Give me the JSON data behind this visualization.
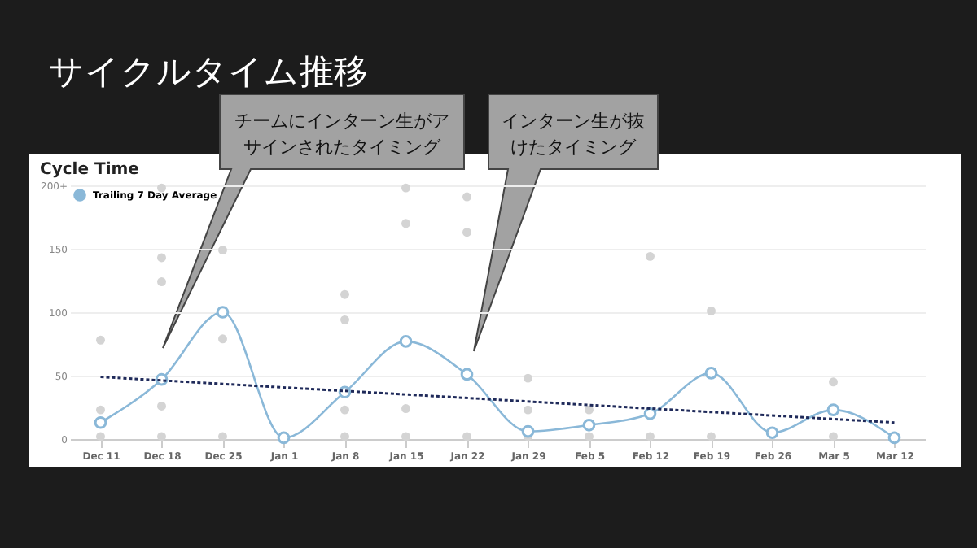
{
  "chart_data": {
    "type": "line",
    "title": "サイクルタイム推移",
    "subtitle": "Cycle Time",
    "categories": [
      "Dec 11",
      "Dec 18",
      "Dec 25",
      "Jan 1",
      "Jan 8",
      "Jan 15",
      "Jan 22",
      "Jan 29",
      "Feb 5",
      "Feb 12",
      "Feb 19",
      "Feb 26",
      "Mar 5",
      "Mar 12"
    ],
    "series": [
      {
        "name": "Trailing 7 Day Average",
        "color": "#8ab8d8",
        "marker": "circle",
        "values": [
          13,
          47,
          100,
          1,
          37,
          77,
          51,
          6,
          11,
          20,
          52,
          5,
          23,
          1
        ]
      },
      {
        "type": "scatter",
        "color": "#d4d4d4",
        "x": [
          "Dec 11",
          "Dec 11",
          "Dec 11",
          "Dec 18",
          "Dec 18",
          "Dec 18",
          "Dec 18",
          "Dec 18",
          "Dec 25",
          "Dec 25",
          "Dec 25",
          "Jan 8",
          "Jan 8",
          "Jan 8",
          "Jan 8",
          "Jan 15",
          "Jan 15",
          "Jan 15",
          "Jan 15",
          "Jan 22",
          "Jan 22",
          "Jan 22",
          "Jan 29",
          "Jan 29",
          "Jan 29",
          "Feb 5",
          "Feb 5",
          "Feb 12",
          "Feb 12",
          "Feb 19",
          "Feb 19",
          "Mar 5",
          "Mar 5"
        ],
        "values": [
          78,
          23,
          2,
          198,
          143,
          124,
          26,
          2,
          149,
          79,
          2,
          114,
          94,
          23,
          2,
          198,
          170,
          24,
          2,
          191,
          163,
          2,
          48,
          23,
          2,
          23,
          2,
          144,
          2,
          101,
          2,
          45,
          2
        ]
      },
      {
        "type": "line",
        "color": "#1f2a5a",
        "marker": "none",
        "line_style": "dotted",
        "x": [
          "Dec 11",
          "Mar 12"
        ],
        "values": [
          49,
          13
        ]
      }
    ],
    "ylim": [
      0,
      200
    ],
    "yticks": [
      0,
      50,
      100,
      150,
      {
        "value": 200,
        "label": "200+"
      }
    ],
    "grid": "y",
    "legend": "top left",
    "annotations": [
      "チームにインターン生がアサインされたタイミング",
      "インターン生が抜けたタイミング"
    ]
  }
}
